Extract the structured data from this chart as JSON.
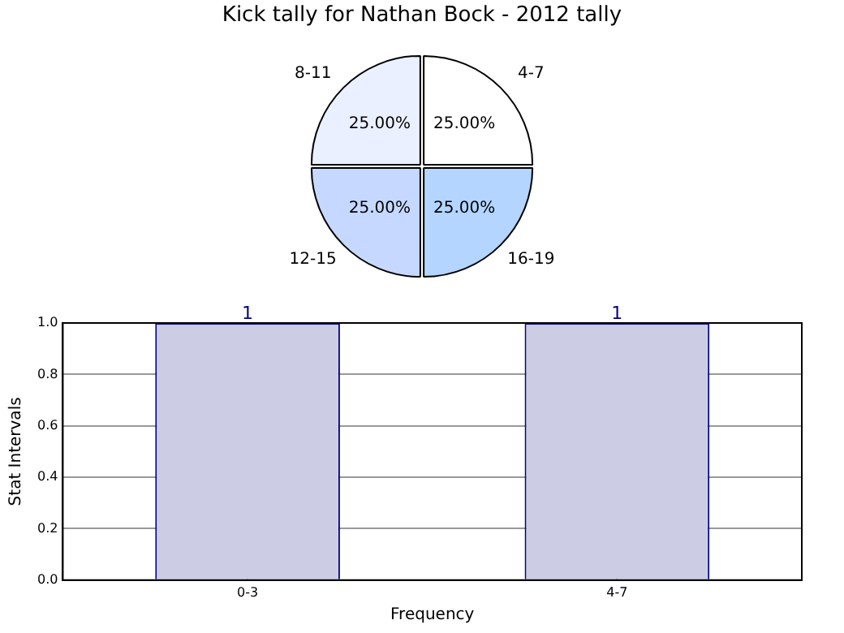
{
  "chart_data": [
    {
      "type": "pie",
      "title": "Kick tally for Nathan Bock - 2012 tally",
      "categories": [
        "4-7",
        "16-19",
        "12-15",
        "8-11"
      ],
      "values": [
        25,
        25,
        25,
        25
      ],
      "colors": [
        "#ffffff",
        "#b3d5ff",
        "#c6d8ff",
        "#eaf0ff"
      ],
      "value_labels": [
        "25.00%",
        "25.00%",
        "25.00%",
        "25.00%"
      ]
    },
    {
      "type": "bar",
      "xlabel": "Frequency",
      "ylabel": "Stat Intervals",
      "categories": [
        "0-3",
        "4-7"
      ],
      "values": [
        1,
        1
      ],
      "color": "#cccce5",
      "ylim": [
        0,
        1
      ],
      "yticks": [
        {
          "value": 0,
          "label": "0.0"
        },
        {
          "value": 0.2,
          "label": "0.2"
        },
        {
          "value": 0.4,
          "label": "0.4"
        },
        {
          "value": 0.6,
          "label": "0.6"
        },
        {
          "value": 0.8,
          "label": "0.8"
        },
        {
          "value": 1,
          "label": "1.0"
        }
      ],
      "grid": true,
      "data_labels": true
    }
  ]
}
